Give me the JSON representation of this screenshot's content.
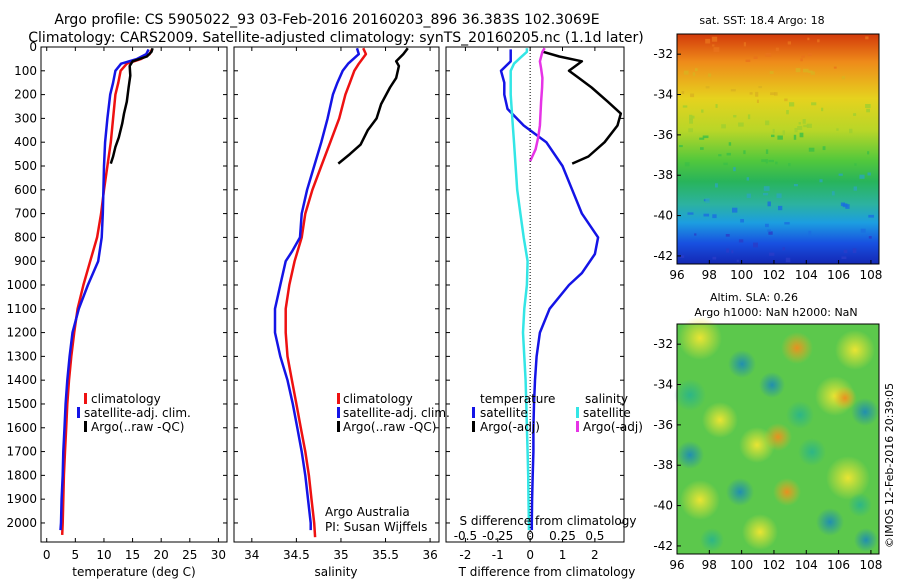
{
  "header": {
    "line1": "Argo profile: CS 5905022_93 03-Feb-2016 20160203_896 36.383S 102.3069E",
    "line2": "Climatology: CARS2009. Satellite-adjusted climatology: synTS_20160205.nc (1.1d later)"
  },
  "side_note": "©IMOS 12-Feb-2016 20:39:05",
  "colors": {
    "climatology": "#ee1111",
    "satellite": "#1414e6",
    "argo": "#000000",
    "satellite_s": "#33e6e6",
    "argo_s": "#e633e6",
    "zero_line": "#000000"
  },
  "chart_data": [
    {
      "type": "line",
      "name": "temperature-profile",
      "xlabel": "temperature (deg C)",
      "ylabel": "",
      "xlim": [
        -1,
        31.5
      ],
      "ylim": [
        2080,
        0
      ],
      "xticks": [
        "0",
        "5",
        "10",
        "15",
        "20",
        "25",
        "30"
      ],
      "xtick_values": [
        0,
        5,
        10,
        15,
        20,
        25,
        30
      ],
      "yticks": [
        "0",
        "100",
        "200",
        "300",
        "400",
        "500",
        "600",
        "700",
        "800",
        "900",
        "1000",
        "1100",
        "1200",
        "1300",
        "1400",
        "1500",
        "1600",
        "1700",
        "1800",
        "1900",
        "2000"
      ],
      "ytick_values": [
        0,
        100,
        200,
        300,
        400,
        500,
        600,
        700,
        800,
        900,
        1000,
        1100,
        1200,
        1300,
        1400,
        1500,
        1600,
        1700,
        1800,
        1900,
        2000
      ],
      "legend": [
        "climatology",
        "satellite-adj. clim.",
        "Argo(..raw -QC)"
      ],
      "series": [
        {
          "name": "climatology",
          "points": [
            [
              18.4,
              10
            ],
            [
              18.0,
              30
            ],
            [
              16.5,
              50
            ],
            [
              14.0,
              70
            ],
            [
              12.9,
              100
            ],
            [
              12.5,
              150
            ],
            [
              12.0,
              200
            ],
            [
              11.6,
              300
            ],
            [
              11.2,
              400
            ],
            [
              10.6,
              500
            ],
            [
              10.0,
              600
            ],
            [
              9.5,
              700
            ],
            [
              8.8,
              800
            ],
            [
              7.6,
              900
            ],
            [
              6.4,
              1000
            ],
            [
              5.4,
              1100
            ],
            [
              4.8,
              1200
            ],
            [
              4.3,
              1300
            ],
            [
              3.9,
              1400
            ],
            [
              3.6,
              1500
            ],
            [
              3.4,
              1600
            ],
            [
              3.2,
              1700
            ],
            [
              3.0,
              1800
            ],
            [
              2.9,
              1900
            ],
            [
              2.8,
              2000
            ],
            [
              2.7,
              2050
            ]
          ]
        },
        {
          "name": "satellite-adj. clim.",
          "points": [
            [
              17.8,
              10
            ],
            [
              17.4,
              30
            ],
            [
              15.8,
              50
            ],
            [
              13.0,
              70
            ],
            [
              12.0,
              100
            ],
            [
              11.6,
              150
            ],
            [
              11.1,
              200
            ],
            [
              10.6,
              300
            ],
            [
              10.2,
              400
            ],
            [
              10.0,
              500
            ],
            [
              9.9,
              600
            ],
            [
              9.8,
              700
            ],
            [
              9.6,
              800
            ],
            [
              9.0,
              900
            ],
            [
              7.2,
              1000
            ],
            [
              5.6,
              1100
            ],
            [
              4.5,
              1200
            ],
            [
              4.0,
              1300
            ],
            [
              3.6,
              1400
            ],
            [
              3.3,
              1500
            ],
            [
              3.1,
              1600
            ],
            [
              2.9,
              1700
            ],
            [
              2.8,
              1800
            ],
            [
              2.6,
              1900
            ],
            [
              2.5,
              2000
            ],
            [
              2.4,
              2030
            ]
          ]
        },
        {
          "name": "Argo(..raw -QC)",
          "points": [
            [
              18.5,
              5
            ],
            [
              18.3,
              20
            ],
            [
              17.5,
              40
            ],
            [
              15.0,
              60
            ],
            [
              14.5,
              80
            ],
            [
              14.6,
              120
            ],
            [
              14.3,
              170
            ],
            [
              14.0,
              230
            ],
            [
              13.5,
              280
            ],
            [
              13.2,
              320
            ],
            [
              12.6,
              380
            ],
            [
              12.0,
              420
            ],
            [
              11.6,
              460
            ],
            [
              11.2,
              490
            ]
          ]
        }
      ]
    },
    {
      "type": "line",
      "name": "salinity-profile",
      "xlabel": "salinity",
      "ylabel": "",
      "xlim": [
        33.8,
        36.1
      ],
      "ylim": [
        2080,
        0
      ],
      "xticks": [
        "34",
        "34.5",
        "35",
        "35.5",
        "36"
      ],
      "xtick_values": [
        34,
        34.5,
        35,
        35.5,
        36
      ],
      "legend": [
        "climatology",
        "satellite-adj. clim.",
        "Argo(..raw -QC)"
      ],
      "annotations": [
        "Argo Australia",
        "PI: Susan Wijffels"
      ],
      "series": [
        {
          "name": "climatology",
          "points": [
            [
              35.25,
              5
            ],
            [
              35.28,
              30
            ],
            [
              35.2,
              70
            ],
            [
              35.15,
              100
            ],
            [
              35.1,
              150
            ],
            [
              35.05,
              200
            ],
            [
              34.98,
              300
            ],
            [
              34.88,
              400
            ],
            [
              34.78,
              500
            ],
            [
              34.68,
              600
            ],
            [
              34.6,
              700
            ],
            [
              34.56,
              800
            ],
            [
              34.48,
              900
            ],
            [
              34.42,
              1000
            ],
            [
              34.38,
              1100
            ],
            [
              34.38,
              1200
            ],
            [
              34.4,
              1300
            ],
            [
              34.45,
              1400
            ],
            [
              34.5,
              1500
            ],
            [
              34.55,
              1600
            ],
            [
              34.6,
              1700
            ],
            [
              34.64,
              1800
            ],
            [
              34.67,
              1900
            ],
            [
              34.7,
              2000
            ],
            [
              34.71,
              2060
            ]
          ]
        },
        {
          "name": "satellite-adj. clim.",
          "points": [
            [
              35.18,
              5
            ],
            [
              35.2,
              30
            ],
            [
              35.08,
              70
            ],
            [
              35.02,
              100
            ],
            [
              34.96,
              150
            ],
            [
              34.91,
              200
            ],
            [
              34.85,
              300
            ],
            [
              34.78,
              400
            ],
            [
              34.7,
              500
            ],
            [
              34.62,
              600
            ],
            [
              34.56,
              700
            ],
            [
              34.54,
              800
            ],
            [
              34.45,
              860
            ],
            [
              34.38,
              900
            ],
            [
              34.32,
              1000
            ],
            [
              34.26,
              1100
            ],
            [
              34.26,
              1200
            ],
            [
              34.32,
              1300
            ],
            [
              34.4,
              1400
            ],
            [
              34.46,
              1500
            ],
            [
              34.51,
              1600
            ],
            [
              34.56,
              1700
            ],
            [
              34.6,
              1800
            ],
            [
              34.63,
              1900
            ],
            [
              34.66,
              2000
            ],
            [
              34.66,
              2030
            ]
          ]
        },
        {
          "name": "Argo(..raw -QC)",
          "points": [
            [
              35.75,
              5
            ],
            [
              35.7,
              30
            ],
            [
              35.62,
              60
            ],
            [
              35.65,
              80
            ],
            [
              35.62,
              130
            ],
            [
              35.55,
              170
            ],
            [
              35.45,
              240
            ],
            [
              35.4,
              300
            ],
            [
              35.3,
              350
            ],
            [
              35.22,
              410
            ],
            [
              35.1,
              450
            ],
            [
              34.97,
              490
            ]
          ]
        }
      ]
    },
    {
      "type": "line",
      "name": "difference-profile",
      "xlabel": "T difference from climatology",
      "top_label": "S difference from climatology",
      "xlim": [
        -2.6,
        2.9
      ],
      "ylim": [
        2080,
        0
      ],
      "xticks": [
        "-2",
        "-1",
        "0",
        "1",
        "2"
      ],
      "xtick_values": [
        -2,
        -1,
        0,
        1,
        2
      ],
      "s_ticks": [
        "-0.5",
        "-0.25",
        "0",
        "0.25",
        "0.5"
      ],
      "legend_headers": [
        "temperature",
        "salinity"
      ],
      "legend": [
        "satellite",
        "Argo(-adj)",
        "satellite",
        "Argo(-adj)"
      ],
      "series": [
        {
          "name": "T satellite",
          "points": [
            [
              -0.6,
              10
            ],
            [
              -0.6,
              30
            ],
            [
              -0.6,
              60
            ],
            [
              -0.9,
              100
            ],
            [
              -0.8,
              150
            ],
            [
              -0.8,
              200
            ],
            [
              -0.7,
              260
            ],
            [
              -0.2,
              330
            ],
            [
              0.5,
              400
            ],
            [
              1.0,
              500
            ],
            [
              1.3,
              600
            ],
            [
              1.6,
              700
            ],
            [
              2.1,
              800
            ],
            [
              2.0,
              870
            ],
            [
              1.6,
              950
            ],
            [
              1.2,
              1000
            ],
            [
              0.6,
              1100
            ],
            [
              0.3,
              1200
            ],
            [
              0.2,
              1300
            ],
            [
              0.15,
              1400
            ],
            [
              0.12,
              1500
            ],
            [
              0.1,
              1600
            ],
            [
              0.1,
              1700
            ],
            [
              0.08,
              1800
            ],
            [
              0.06,
              1900
            ],
            [
              0.05,
              2000
            ],
            [
              0.05,
              2030
            ]
          ]
        },
        {
          "name": "S satellite",
          "points": [
            [
              -0.1,
              5
            ],
            [
              -0.1,
              20
            ],
            [
              -0.3,
              45
            ],
            [
              -0.5,
              70
            ],
            [
              -0.6,
              100
            ],
            [
              -0.6,
              150
            ],
            [
              -0.6,
              200
            ],
            [
              -0.55,
              300
            ],
            [
              -0.5,
              400
            ],
            [
              -0.45,
              500
            ],
            [
              -0.4,
              600
            ],
            [
              -0.3,
              700
            ],
            [
              -0.2,
              800
            ],
            [
              -0.08,
              900
            ],
            [
              -0.1,
              1000
            ],
            [
              -0.18,
              1100
            ],
            [
              -0.22,
              1200
            ],
            [
              -0.18,
              1300
            ],
            [
              -0.14,
              1400
            ],
            [
              -0.12,
              1500
            ],
            [
              -0.1,
              1600
            ],
            [
              -0.08,
              1700
            ],
            [
              -0.06,
              1800
            ],
            [
              -0.05,
              1900
            ],
            [
              -0.04,
              2000
            ],
            [
              -0.04,
              2030
            ]
          ]
        },
        {
          "name": "T Argo(-adj)",
          "points": [
            [
              0.4,
              20
            ],
            [
              0.9,
              40
            ],
            [
              1.6,
              60
            ],
            [
              1.4,
              80
            ],
            [
              1.2,
              100
            ],
            [
              1.5,
              130
            ],
            [
              1.9,
              170
            ],
            [
              2.4,
              230
            ],
            [
              2.8,
              280
            ],
            [
              2.7,
              330
            ],
            [
              2.3,
              400
            ],
            [
              1.8,
              460
            ],
            [
              1.3,
              490
            ]
          ]
        },
        {
          "name": "S Argo(-adj)",
          "points": [
            [
              0.45,
              5
            ],
            [
              0.38,
              20
            ],
            [
              0.3,
              60
            ],
            [
              0.34,
              90
            ],
            [
              0.38,
              130
            ],
            [
              0.37,
              170
            ],
            [
              0.34,
              230
            ],
            [
              0.32,
              280
            ],
            [
              0.3,
              330
            ],
            [
              0.25,
              380
            ],
            [
              0.17,
              430
            ],
            [
              0.0,
              480
            ]
          ]
        }
      ]
    },
    {
      "type": "heatmap",
      "name": "sst-map",
      "title": "sat. SST: 18.4 Argo: 18",
      "xticks": [
        "96",
        "98",
        "100",
        "102",
        "104",
        "106",
        "108"
      ],
      "yticks": [
        "-32",
        "-34",
        "-36",
        "-38",
        "-40",
        "-42"
      ]
    },
    {
      "type": "heatmap",
      "name": "sla-map",
      "title_line1": "Altim. SLA: 0.26",
      "title_line2": "Argo h1000: NaN h2000: NaN",
      "xticks": [
        "96",
        "98",
        "100",
        "102",
        "104",
        "106",
        "108"
      ],
      "yticks": [
        "-32",
        "-34",
        "-36",
        "-38",
        "-40",
        "-42"
      ]
    }
  ]
}
